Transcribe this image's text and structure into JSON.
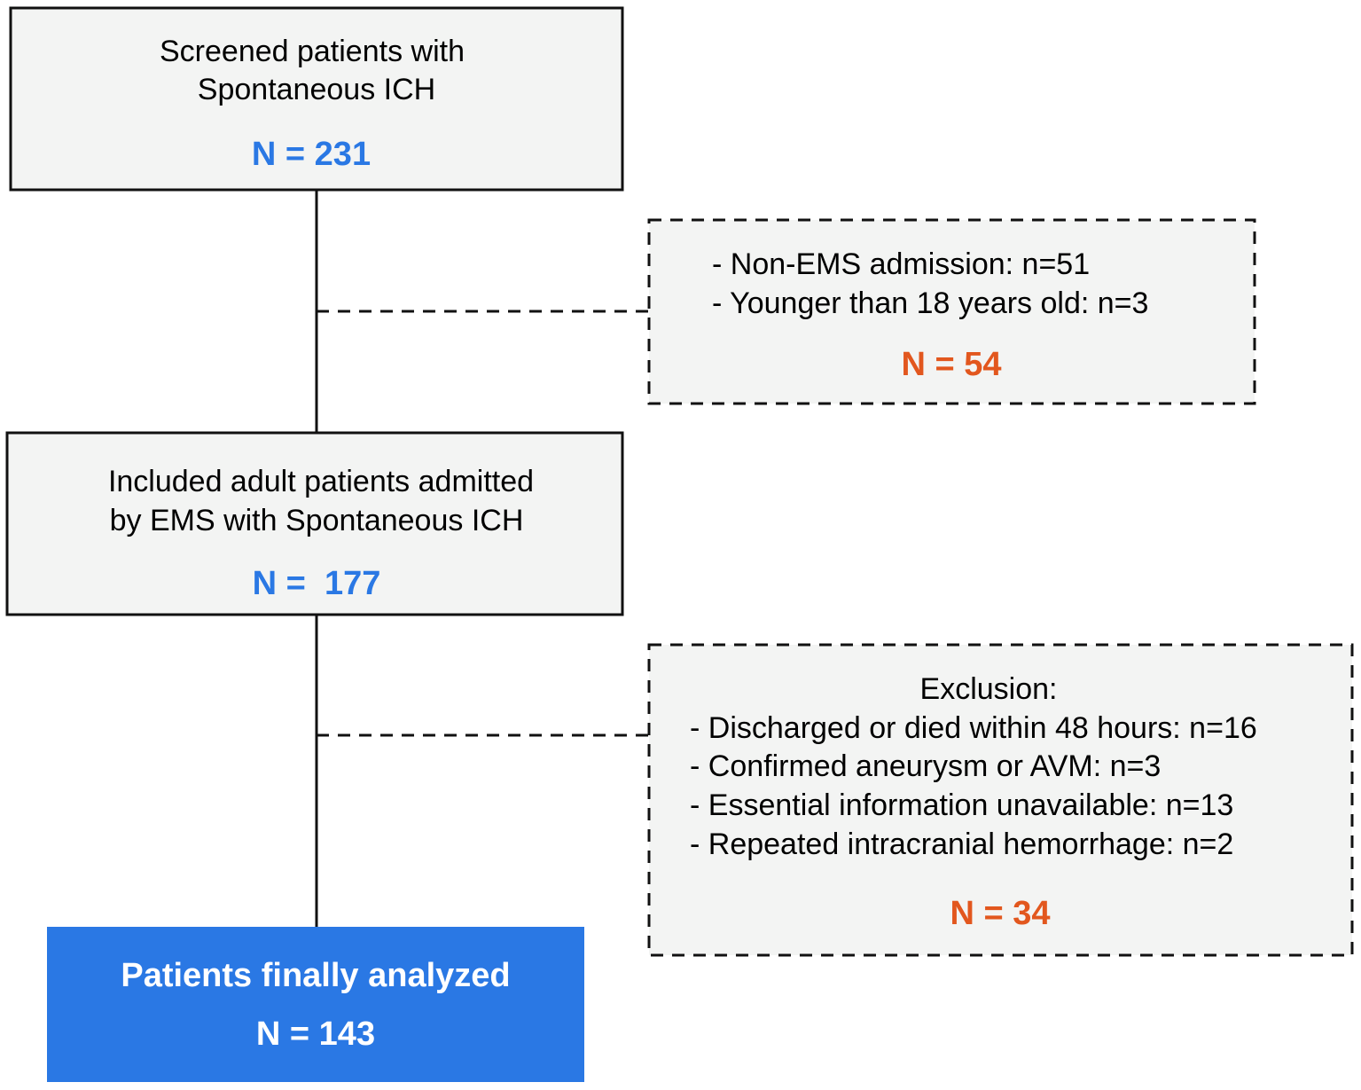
{
  "screened": {
    "lines": [
      "Screened patients with",
      "Spontaneous ICH"
    ],
    "count": "N = 231"
  },
  "exclusion_1": {
    "lines": [
      "- Non-EMS admission: n=51",
      "- Younger than 18 years old: n=3"
    ],
    "count": "N = 54"
  },
  "included": {
    "lines": [
      "Included adult patients admitted",
      "by EMS with Spontaneous ICH"
    ],
    "count": "N =  177"
  },
  "exclusion_2": {
    "heading": "Exclusion:",
    "lines": [
      "- Discharged or died within 48 hours: n=16",
      "- Confirmed aneurysm or AVM: n=3",
      "- Essential information unavailable: n=13",
      "- Repeated intracranial hemorrhage: n=2"
    ],
    "count": "N = 34"
  },
  "final": {
    "title": "Patients finally analyzed",
    "count": "N = 143"
  }
}
